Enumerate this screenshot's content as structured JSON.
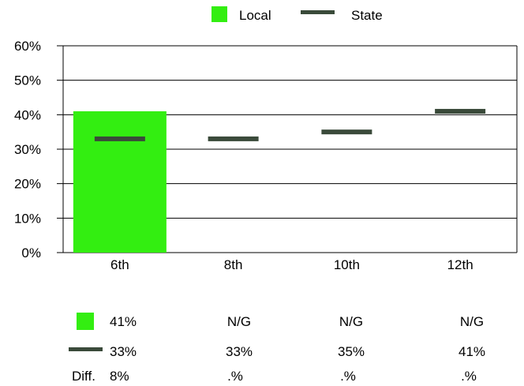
{
  "chart_data": {
    "type": "bar",
    "title": "",
    "xlabel": "",
    "ylabel": "",
    "categories": [
      "6th",
      "8th",
      "10th",
      "12th"
    ],
    "ylim": [
      0,
      60
    ],
    "yticks": [
      "0%",
      "10%",
      "20%",
      "30%",
      "40%",
      "50%",
      "60%"
    ],
    "grid": true,
    "legend_position": "top",
    "series": [
      {
        "name": "Local",
        "type": "bar",
        "color": "#33ee11",
        "values": [
          41,
          null,
          null,
          null
        ]
      },
      {
        "name": "State",
        "type": "marker",
        "color": "#3a4a3a",
        "values": [
          33,
          33,
          35,
          41
        ]
      }
    ]
  },
  "table": {
    "local_row": [
      "41%",
      "N/G",
      "N/G",
      "N/G"
    ],
    "state_row": [
      "33%",
      "33%",
      "35%",
      "41%"
    ],
    "diff_label": "Diff.",
    "diff_row": [
      "8%",
      ".%",
      ".%",
      ".%"
    ]
  }
}
